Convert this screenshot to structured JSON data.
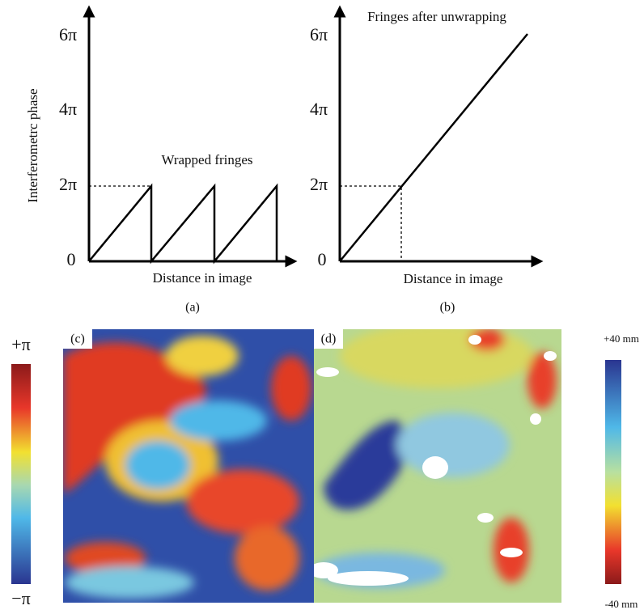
{
  "panel_a": {
    "y_axis_label": "Interferometrc phase",
    "y_ticks": [
      "0",
      "2π",
      "4π",
      "6π"
    ],
    "annotation": "Wrapped fringes",
    "x_axis_label": "Distance in image",
    "caption": "(a)"
  },
  "panel_b": {
    "y_ticks": [
      "0",
      "2π",
      "4π",
      "6π"
    ],
    "annotation": "Fringes after unwrapping",
    "x_axis_label": "Distance in image",
    "caption": "(b)"
  },
  "panel_c": {
    "caption": "(c)",
    "colorbar": {
      "max": "+π",
      "min": "−π"
    }
  },
  "panel_d": {
    "caption": "(d)",
    "colorbar": {
      "max": "+40 mm",
      "min": "-40 mm"
    }
  }
}
